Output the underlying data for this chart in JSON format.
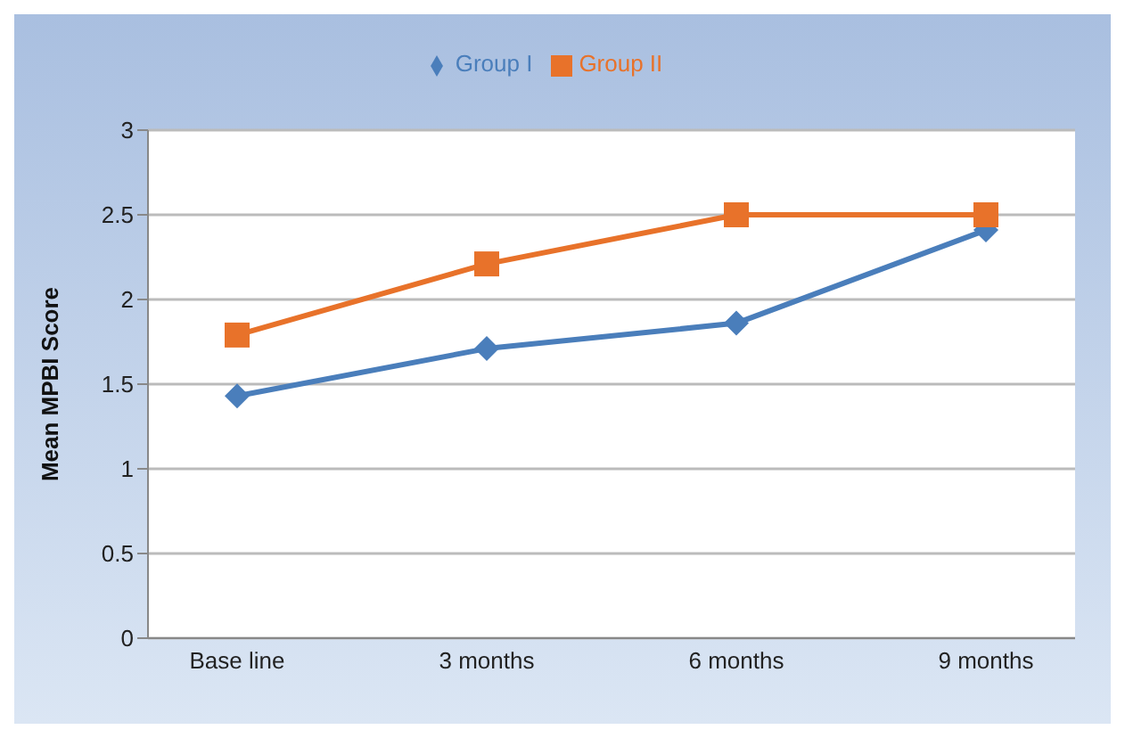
{
  "chart_data": {
    "type": "line",
    "ylabel": "Mean MPBI Score",
    "categories": [
      "Base line",
      "3 months",
      "6 months",
      "9 months"
    ],
    "series": [
      {
        "name": "Group I",
        "color": "#4a7ebb",
        "marker": "diamond",
        "values": [
          1.43,
          1.71,
          1.86,
          2.41
        ]
      },
      {
        "name": "Group II",
        "color": "#e8722a",
        "marker": "square",
        "values": [
          1.79,
          2.21,
          2.5,
          2.5
        ]
      }
    ],
    "ylim": [
      0,
      3
    ],
    "yticks": [
      0,
      0.5,
      1,
      1.5,
      2,
      2.5,
      3
    ],
    "grid": "y",
    "legend": "top",
    "line_style": "solid"
  }
}
